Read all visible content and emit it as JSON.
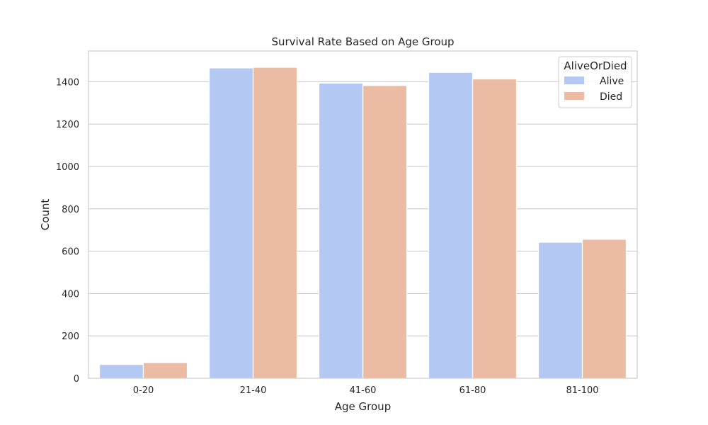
{
  "chart_data": {
    "type": "bar",
    "title": "Survival Rate Based on Age Group",
    "xlabel": "Age Group",
    "ylabel": "Count",
    "categories": [
      "0-20",
      "21-40",
      "41-60",
      "61-80",
      "81-100"
    ],
    "series": [
      {
        "name": "Alive",
        "color": "#b3c9f4",
        "values": [
          65,
          1465,
          1393,
          1444,
          642
        ]
      },
      {
        "name": "Died",
        "color": "#ecbba4",
        "values": [
          74,
          1468,
          1382,
          1413,
          656
        ]
      }
    ],
    "ylim": [
      0,
      1545
    ],
    "yticks": [
      0,
      200,
      400,
      600,
      800,
      1000,
      1200,
      1400
    ],
    "grid": true,
    "legend": {
      "title": "AliveOrDied",
      "position": "top-right"
    }
  }
}
